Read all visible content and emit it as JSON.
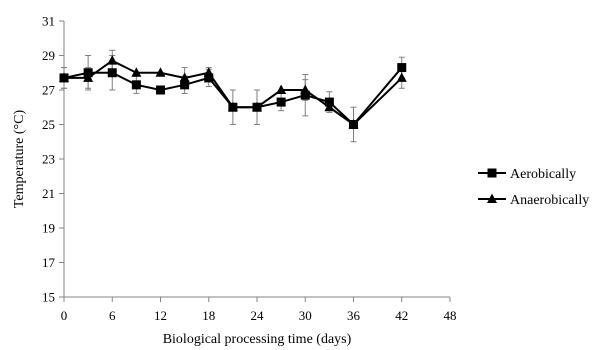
{
  "chart_data": {
    "type": "line",
    "title": "",
    "xlabel": "Biological processing time (days)",
    "ylabel": "Temperature (°C)",
    "xlim": [
      0,
      48
    ],
    "ylim": [
      15,
      31
    ],
    "x_ticks": [
      0,
      6,
      12,
      18,
      24,
      30,
      36,
      42,
      48
    ],
    "y_ticks": [
      15,
      17,
      19,
      21,
      23,
      25,
      27,
      29,
      31
    ],
    "grid": false,
    "legend_position": "right",
    "series": [
      {
        "name": "Aerobically",
        "marker": "square",
        "color": "#000000",
        "x": [
          0,
          3,
          6,
          9,
          12,
          15,
          18,
          21,
          24,
          27,
          30,
          33,
          36,
          42
        ],
        "y": [
          27.7,
          28.0,
          28.0,
          27.3,
          27.0,
          27.3,
          27.7,
          26.0,
          26.0,
          26.3,
          26.7,
          26.3,
          25.0,
          28.3
        ],
        "error": [
          0.6,
          1.0,
          1.0,
          0.5,
          0.0,
          0.5,
          0.5,
          1.0,
          1.0,
          0.5,
          1.2,
          0.6,
          1.0,
          0.6
        ]
      },
      {
        "name": "Anaerobically",
        "marker": "triangle",
        "color": "#000000",
        "x": [
          0,
          3,
          6,
          9,
          12,
          15,
          18,
          21,
          24,
          27,
          30,
          33,
          36,
          42
        ],
        "y": [
          27.7,
          27.7,
          28.7,
          28.0,
          28.0,
          27.7,
          28.0,
          26.0,
          26.0,
          27.0,
          27.0,
          26.0,
          25.0,
          27.7
        ],
        "error": [
          0.6,
          0.6,
          0.6,
          0.0,
          0.0,
          0.6,
          0.3,
          0.0,
          0.0,
          0.0,
          0.6,
          0.0,
          0.0,
          0.6
        ]
      }
    ]
  }
}
